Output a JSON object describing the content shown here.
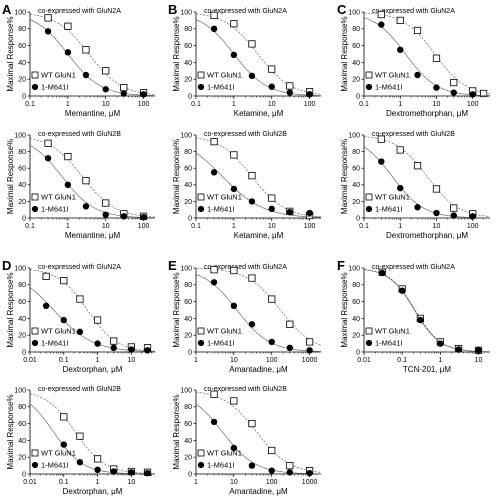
{
  "figure": {
    "panel_labels": [
      "A",
      "B",
      "C",
      "D",
      "E",
      "F"
    ]
  },
  "chart_data": [
    {
      "panel": "A",
      "type": "scatter",
      "xscale": "log",
      "title": "co-expressed with GluN2A",
      "xlabel": "Memantine, μM",
      "ylabel": "Maximal Response%",
      "xlim": [
        0.1,
        200
      ],
      "ylim": [
        0,
        100
      ],
      "xticks": [
        0.1,
        1,
        10,
        100
      ],
      "xtick_labels": [
        "0.1",
        "1",
        "10",
        "100"
      ],
      "yticks": [
        0,
        20,
        40,
        60,
        80,
        100
      ],
      "ytick_labels": [
        "0",
        "20",
        "40",
        "60",
        "80",
        "100"
      ],
      "legend": "bottom-left",
      "series": [
        {
          "name": "WT GluN1",
          "marker": "open-square",
          "x": [
            0.3,
            1,
            3,
            10,
            30,
            100
          ],
          "y": [
            93,
            83,
            55,
            30,
            10,
            4
          ],
          "fit": {
            "top": 100,
            "bottom": 0,
            "ic50": 3.6,
            "hill": 1.0
          }
        },
        {
          "name": "1-M641I",
          "marker": "filled-circle",
          "x": [
            0.3,
            1,
            3,
            10,
            30,
            100
          ],
          "y": [
            77,
            52,
            25,
            8,
            3,
            2
          ],
          "fit": {
            "top": 100,
            "bottom": 0,
            "ic50": 1.0,
            "hill": 1.0
          }
        }
      ]
    },
    {
      "panel": "A",
      "type": "scatter",
      "xscale": "log",
      "title": "co-expressed with GluN2B",
      "xlabel": "Memantine, μM",
      "ylabel": "Maximal Response%",
      "xlim": [
        0.1,
        200
      ],
      "ylim": [
        0,
        100
      ],
      "xticks": [
        0.1,
        1,
        10,
        100
      ],
      "xtick_labels": [
        "0.1",
        "1",
        "10",
        "100"
      ],
      "yticks": [
        0,
        20,
        40,
        60,
        80,
        100
      ],
      "ytick_labels": [
        "0",
        "20",
        "40",
        "60",
        "80",
        "100"
      ],
      "legend": "bottom-left",
      "series": [
        {
          "name": "WT GluN1",
          "marker": "open-square",
          "x": [
            0.3,
            1,
            3,
            10,
            30,
            100
          ],
          "y": [
            90,
            74,
            45,
            18,
            5,
            2
          ],
          "fit": {
            "top": 100,
            "bottom": 0,
            "ic50": 2.4,
            "hill": 1.0
          }
        },
        {
          "name": "1-M641I",
          "marker": "filled-circle",
          "x": [
            0.3,
            1,
            3,
            10,
            30,
            100
          ],
          "y": [
            72,
            40,
            14,
            4,
            2,
            1
          ],
          "fit": {
            "top": 100,
            "bottom": 0,
            "ic50": 0.7,
            "hill": 1.0
          }
        }
      ]
    },
    {
      "panel": "B",
      "type": "scatter",
      "xscale": "log",
      "title": "co-expressed with GluN2A",
      "xlabel": "Ketamine, μM",
      "ylabel": "Maximal Response%",
      "xlim": [
        0.1,
        200
      ],
      "ylim": [
        0,
        100
      ],
      "xticks": [
        0.1,
        1,
        10,
        100
      ],
      "xtick_labels": [
        "0.1",
        "1",
        "10",
        "100"
      ],
      "yticks": [
        0,
        20,
        40,
        60,
        80,
        100
      ],
      "ytick_labels": [
        "0",
        "20",
        "40",
        "60",
        "80",
        "100"
      ],
      "legend": "bottom-left",
      "series": [
        {
          "name": "WT GluN1",
          "marker": "open-square",
          "x": [
            0.3,
            1,
            3,
            10,
            30,
            100
          ],
          "y": [
            96,
            86,
            62,
            32,
            12,
            5
          ],
          "fit": {
            "top": 100,
            "bottom": 0,
            "ic50": 4.3,
            "hill": 1.0
          }
        },
        {
          "name": "1-M641I",
          "marker": "filled-circle",
          "x": [
            0.3,
            1,
            3,
            10,
            30,
            100
          ],
          "y": [
            80,
            49,
            24,
            11,
            4,
            2
          ],
          "fit": {
            "top": 100,
            "bottom": 0,
            "ic50": 1.0,
            "hill": 1.0
          }
        }
      ]
    },
    {
      "panel": "B",
      "type": "scatter",
      "xscale": "log",
      "title": "co-expressed with GluN2B",
      "xlabel": "Ketamine, μM",
      "ylabel": "Maximal Response%",
      "xlim": [
        0.1,
        200
      ],
      "ylim": [
        0,
        100
      ],
      "xticks": [
        0.1,
        1,
        10,
        100
      ],
      "xtick_labels": [
        "0.1",
        "1",
        "10",
        "100"
      ],
      "yticks": [
        0,
        20,
        40,
        60,
        80,
        100
      ],
      "ytick_labels": [
        "0",
        "20",
        "40",
        "60",
        "80",
        "100"
      ],
      "legend": "bottom-left",
      "series": [
        {
          "name": "WT GluN1",
          "marker": "open-square",
          "x": [
            0.3,
            1,
            3,
            10,
            30,
            100
          ],
          "y": [
            92,
            76,
            51,
            24,
            8,
            3
          ],
          "fit": {
            "top": 100,
            "bottom": 0,
            "ic50": 3.0,
            "hill": 1.0
          }
        },
        {
          "name": "1-M641I",
          "marker": "filled-circle",
          "x": [
            0.3,
            1,
            3,
            10,
            30,
            100
          ],
          "y": [
            55,
            35,
            20,
            11,
            7,
            6
          ],
          "fit": {
            "top": 100,
            "bottom": 0,
            "ic50": 0.5,
            "hill": 0.8
          }
        }
      ]
    },
    {
      "panel": "C",
      "type": "scatter",
      "xscale": "log",
      "title": "co-expressed with GluN2A",
      "xlabel": "Dextromethorphan, μM",
      "ylabel": "Maximal Response%",
      "xlim": [
        0.1,
        300
      ],
      "ylim": [
        0,
        100
      ],
      "xticks": [
        0.1,
        1,
        10,
        100
      ],
      "xtick_labels": [
        "0.1",
        "1",
        "10",
        "100"
      ],
      "yticks": [
        0,
        20,
        40,
        60,
        80,
        100
      ],
      "ytick_labels": [
        "0",
        "20",
        "40",
        "60",
        "80",
        "100"
      ],
      "legend": "bottom-left",
      "series": [
        {
          "name": "WT GluN1",
          "marker": "open-square",
          "x": [
            0.3,
            1,
            3,
            10,
            30,
            100,
            200
          ],
          "y": [
            97,
            90,
            78,
            45,
            16,
            6,
            3
          ],
          "fit": {
            "top": 100,
            "bottom": 0,
            "ic50": 9.0,
            "hill": 1.0
          }
        },
        {
          "name": "1-M641I",
          "marker": "filled-circle",
          "x": [
            0.3,
            1,
            3,
            10,
            30,
            100
          ],
          "y": [
            85,
            55,
            25,
            10,
            4,
            2
          ],
          "fit": {
            "top": 100,
            "bottom": 0,
            "ic50": 1.4,
            "hill": 1.0
          }
        }
      ]
    },
    {
      "panel": "C",
      "type": "scatter",
      "xscale": "log",
      "title": "co-expressed with GluN2B",
      "xlabel": "Dextromethorphan, μM",
      "ylabel": "Maximal Response%",
      "xlim": [
        0.1,
        300
      ],
      "ylim": [
        0,
        100
      ],
      "xticks": [
        0.1,
        1,
        10,
        100
      ],
      "xtick_labels": [
        "0.1",
        "1",
        "10",
        "100"
      ],
      "yticks": [
        0,
        20,
        40,
        60,
        80,
        100
      ],
      "ytick_labels": [
        "0",
        "20",
        "40",
        "60",
        "80",
        "100"
      ],
      "legend": "bottom-left",
      "series": [
        {
          "name": "WT GluN1",
          "marker": "open-square",
          "x": [
            0.3,
            1,
            3,
            10,
            30,
            100
          ],
          "y": [
            95,
            82,
            63,
            35,
            12,
            5
          ],
          "fit": {
            "top": 100,
            "bottom": 0,
            "ic50": 5.5,
            "hill": 1.0
          }
        },
        {
          "name": "1-M641I",
          "marker": "filled-circle",
          "x": [
            0.3,
            1,
            3,
            10,
            30,
            100
          ],
          "y": [
            68,
            36,
            13,
            6,
            3,
            2
          ],
          "fit": {
            "top": 100,
            "bottom": 0,
            "ic50": 0.6,
            "hill": 1.0
          }
        }
      ]
    },
    {
      "panel": "D",
      "type": "scatter",
      "xscale": "log",
      "title": "co-expressed with GluN2A",
      "xlabel": "Dextrorphan, μM",
      "ylabel": "Maximal Response%",
      "xlim": [
        0.01,
        50
      ],
      "ylim": [
        0,
        100
      ],
      "xticks": [
        0.01,
        0.1,
        1,
        10
      ],
      "xtick_labels": [
        "0.01",
        "0.1",
        "1",
        "10"
      ],
      "yticks": [
        0,
        20,
        40,
        60,
        80,
        100
      ],
      "ytick_labels": [
        "0",
        "20",
        "40",
        "60",
        "80",
        "100"
      ],
      "legend": "bottom-left",
      "series": [
        {
          "name": "WT GluN1",
          "marker": "open-square",
          "x": [
            0.03,
            0.1,
            0.3,
            1,
            3,
            10,
            30
          ],
          "y": [
            90,
            85,
            63,
            38,
            13,
            6,
            5
          ],
          "fit": {
            "top": 100,
            "bottom": 0,
            "ic50": 0.5,
            "hill": 1.0
          }
        },
        {
          "name": "1-M641I",
          "marker": "filled-circle",
          "x": [
            0.03,
            0.1,
            0.3,
            1,
            3,
            10,
            30
          ],
          "y": [
            55,
            38,
            24,
            10,
            5,
            3,
            2
          ],
          "fit": {
            "top": 100,
            "bottom": 0,
            "ic50": 0.05,
            "hill": 0.75
          }
        }
      ]
    },
    {
      "panel": "D",
      "type": "scatter",
      "xscale": "log",
      "title": "co-expressed with GluN2B",
      "xlabel": "Dextrorphan, μM",
      "ylabel": "Maximal Response%",
      "xlim": [
        0.01,
        50
      ],
      "ylim": [
        0,
        100
      ],
      "xticks": [
        0.01,
        0.1,
        1,
        10
      ],
      "xtick_labels": [
        "0.01",
        "0.1",
        "1",
        "10"
      ],
      "yticks": [
        0,
        20,
        40,
        60,
        80,
        100
      ],
      "ytick_labels": [
        "0",
        "20",
        "40",
        "60",
        "80",
        "100"
      ],
      "legend": "bottom-left",
      "series": [
        {
          "name": "WT GluN1",
          "marker": "open-square",
          "x": [
            0.1,
            0.3,
            1,
            3,
            10,
            30
          ],
          "y": [
            68,
            45,
            18,
            6,
            3,
            2
          ],
          "fit": {
            "top": 100,
            "bottom": 0,
            "ic50": 0.22,
            "hill": 1.0
          }
        },
        {
          "name": "1-M641I",
          "marker": "filled-circle",
          "x": [
            0.1,
            0.3,
            1,
            3,
            10,
            30
          ],
          "y": [
            35,
            14,
            5,
            3,
            2,
            1
          ],
          "fit": {
            "top": 100,
            "bottom": 0,
            "ic50": 0.05,
            "hill": 1.0
          }
        }
      ]
    },
    {
      "panel": "E",
      "type": "scatter",
      "xscale": "log",
      "title": "co-expressed with GluN2A",
      "xlabel": "Amantadine, μM",
      "ylabel": "Maximal Response%",
      "xlim": [
        1,
        2000
      ],
      "ylim": [
        0,
        100
      ],
      "xticks": [
        1,
        10,
        100,
        1000
      ],
      "xtick_labels": [
        "1",
        "10",
        "100",
        "1000"
      ],
      "yticks": [
        0,
        20,
        40,
        60,
        80,
        100
      ],
      "ytick_labels": [
        "0",
        "20",
        "40",
        "60",
        "80",
        "100"
      ],
      "legend": "bottom-left",
      "series": [
        {
          "name": "WT GluN1",
          "marker": "open-square",
          "x": [
            3,
            10,
            30,
            100,
            300,
            1000
          ],
          "y": [
            98,
            97,
            88,
            63,
            33,
            12
          ],
          "fit": {
            "top": 100,
            "bottom": 0,
            "ic50": 170,
            "hill": 1.0
          }
        },
        {
          "name": "1-M641I",
          "marker": "filled-circle",
          "x": [
            3,
            10,
            30,
            100,
            300,
            1000
          ],
          "y": [
            83,
            55,
            33,
            12,
            5,
            2
          ],
          "fit": {
            "top": 100,
            "bottom": 0,
            "ic50": 12,
            "hill": 1.0
          }
        }
      ]
    },
    {
      "panel": "E",
      "type": "scatter",
      "xscale": "log",
      "title": "co-expressed with GluN2B",
      "xlabel": "Amantadine, μM",
      "ylabel": "Maximal Response%",
      "xlim": [
        1,
        2000
      ],
      "ylim": [
        0,
        100
      ],
      "xticks": [
        1,
        10,
        100,
        1000
      ],
      "xtick_labels": [
        "1",
        "10",
        "100",
        "1000"
      ],
      "yticks": [
        0,
        20,
        40,
        60,
        80,
        100
      ],
      "ytick_labels": [
        "0",
        "20",
        "40",
        "60",
        "80",
        "100"
      ],
      "legend": "bottom-left",
      "series": [
        {
          "name": "WT GluN1",
          "marker": "open-square",
          "x": [
            3,
            10,
            30,
            100,
            300,
            1000
          ],
          "y": [
            95,
            87,
            60,
            28,
            10,
            4
          ],
          "fit": {
            "top": 100,
            "bottom": 0,
            "ic50": 40,
            "hill": 1.0
          }
        },
        {
          "name": "1-M641I",
          "marker": "filled-circle",
          "x": [
            3,
            10,
            30,
            100,
            300,
            1000
          ],
          "y": [
            62,
            31,
            10,
            4,
            2,
            1
          ],
          "fit": {
            "top": 100,
            "bottom": 0,
            "ic50": 5,
            "hill": 1.0
          }
        }
      ]
    },
    {
      "panel": "F",
      "type": "scatter",
      "xscale": "log",
      "title": "co-expressed with GluN2A",
      "xlabel": "TCN-201, μM",
      "ylabel": "Maximal Response%",
      "xlim": [
        0.01,
        20
      ],
      "ylim": [
        0,
        100
      ],
      "xticks": [
        0.01,
        0.1,
        1,
        10
      ],
      "xtick_labels": [
        "0.01",
        "0.1",
        "1",
        "10"
      ],
      "yticks": [
        0,
        20,
        40,
        60,
        80,
        100
      ],
      "ytick_labels": [
        "0",
        "20",
        "40",
        "60",
        "80",
        "100"
      ],
      "legend": "bottom-left",
      "series": [
        {
          "name": "WT GluN1",
          "marker": "open-square",
          "x": [
            0.03,
            0.1,
            0.3,
            1,
            3,
            10
          ],
          "y": [
            95,
            75,
            40,
            12,
            4,
            2
          ],
          "fit": {
            "top": 100,
            "bottom": 0,
            "ic50": 0.22,
            "hill": 1.3
          }
        },
        {
          "name": "1-M641I",
          "marker": "filled-circle",
          "x": [
            0.03,
            0.1,
            0.3,
            1,
            3,
            10
          ],
          "y": [
            94,
            73,
            38,
            10,
            3,
            2
          ],
          "fit": {
            "top": 100,
            "bottom": 0,
            "ic50": 0.21,
            "hill": 1.3
          }
        }
      ]
    }
  ]
}
